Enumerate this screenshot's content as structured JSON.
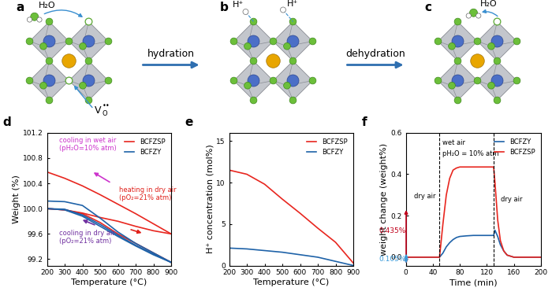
{
  "diagram": {
    "panels": [
      {
        "label": "a",
        "molecule": "H₂O",
        "vacancy": {
          "base": "V",
          "sub": "O",
          "sup": "••"
        }
      },
      {
        "label": "b",
        "protons": [
          "H⁺",
          "H⁺"
        ]
      },
      {
        "label": "c",
        "molecule": "H₂O"
      }
    ],
    "arrows": [
      "hydration",
      "dehydration"
    ]
  },
  "chart_data": [
    {
      "type": "line",
      "panel_label": "d",
      "xlabel": "Temperature (°C)",
      "ylabel": "Weight (%)",
      "x": [
        200,
        300,
        400,
        500,
        600,
        700,
        800,
        900
      ],
      "xlim": [
        200,
        900
      ],
      "xticks": [
        200,
        300,
        400,
        500,
        600,
        700,
        800,
        900
      ],
      "ylim": [
        99.1,
        101.2
      ],
      "yticks": [
        99.2,
        99.6,
        100.0,
        100.4,
        100.8,
        101.2
      ],
      "legend": "upper right",
      "series": [
        {
          "name": "BCFZSP",
          "color": "#e8261f",
          "values": [
            100.0,
            99.98,
            99.93,
            99.86,
            99.8,
            99.72,
            99.65,
            99.6
          ]
        },
        {
          "name": "BCFZSP",
          "color": "#e8261f",
          "values": [
            100.58,
            100.48,
            100.36,
            100.22,
            100.07,
            99.92,
            99.76,
            99.6
          ]
        },
        {
          "name": "BCFZSP",
          "color": "#e8261f",
          "values": [
            100.0,
            99.98,
            99.92,
            99.78,
            99.6,
            99.45,
            99.3,
            99.15
          ]
        },
        {
          "name": "BCFZY",
          "color": "#1e62a8",
          "values": [
            100.0,
            99.99,
            99.9,
            99.75,
            99.58,
            99.42,
            99.28,
            99.15
          ]
        },
        {
          "name": "BCFZY",
          "color": "#1e62a8",
          "values": [
            100.12,
            100.11,
            100.05,
            99.85,
            99.63,
            99.45,
            99.3,
            99.15
          ]
        },
        {
          "name": "BCFZY",
          "color": "#1e62a8",
          "values": [
            100.0,
            99.98,
            99.88,
            99.72,
            99.56,
            99.41,
            99.27,
            99.15
          ]
        }
      ],
      "annotations": [
        {
          "text": "cooling in wet air\n(pH₂O=10% atm)",
          "color": "#cc33cc"
        },
        {
          "text": "heating in dry air\n(pO₂=21% atm)",
          "color": "#e0201a"
        },
        {
          "text": "cooling in dry air\n(pO₂=21% atm)",
          "color": "#7030a0"
        }
      ]
    },
    {
      "type": "line",
      "panel_label": "e",
      "xlabel": "Temperature (°C)",
      "ylabel": "H⁺ concentration (mol%)",
      "x": [
        200,
        300,
        400,
        500,
        600,
        700,
        800,
        900
      ],
      "xlim": [
        200,
        900
      ],
      "xticks": [
        200,
        300,
        400,
        500,
        600,
        700,
        800,
        900
      ],
      "ylim": [
        0,
        16
      ],
      "yticks": [
        0,
        5,
        10,
        15
      ],
      "legend": "upper right",
      "series": [
        {
          "name": "BCFZSP",
          "color": "#e8261f",
          "values": [
            11.5,
            11.0,
            9.8,
            8.0,
            6.3,
            4.5,
            2.8,
            0.3
          ]
        },
        {
          "name": "BCFZY",
          "color": "#1e62a8",
          "values": [
            2.1,
            2.0,
            1.8,
            1.6,
            1.3,
            1.0,
            0.5,
            0.0
          ]
        }
      ]
    },
    {
      "type": "line",
      "panel_label": "f",
      "xlabel": "Time (min)",
      "ylabel": "weight change (weight%)",
      "x": [
        0,
        50,
        55,
        60,
        65,
        70,
        75,
        80,
        90,
        100,
        110,
        120,
        130,
        132,
        136,
        140,
        145,
        150,
        160,
        180,
        200
      ],
      "xlim": [
        0,
        200
      ],
      "xticks": [
        0,
        40,
        80,
        120,
        160,
        200
      ],
      "ylim": [
        -0.04,
        0.6
      ],
      "yticks": [
        0.0,
        0.2,
        0.4,
        0.6
      ],
      "legend": "upper right",
      "series": [
        {
          "name": "BCFZY",
          "color": "#1e62a8",
          "values": [
            0,
            0,
            0.02,
            0.05,
            0.07,
            0.085,
            0.095,
            0.1,
            0.103,
            0.105,
            0.105,
            0.105,
            0.105,
            0.13,
            0.1,
            0.06,
            0.03,
            0.01,
            0,
            0,
            0
          ]
        },
        {
          "name": "BCFZSP",
          "color": "#e8261f",
          "values": [
            0,
            0,
            0.16,
            0.3,
            0.38,
            0.42,
            0.43,
            0.435,
            0.435,
            0.435,
            0.435,
            0.435,
            0.435,
            0.36,
            0.18,
            0.08,
            0.03,
            0.01,
            0,
            0,
            0
          ]
        }
      ],
      "vlines": [
        50,
        130
      ],
      "annotations": [
        {
          "text": "dry air",
          "color": "#000000"
        },
        {
          "text": "wet air",
          "color": "#000000"
        },
        {
          "text": "pH₂O = 10% atm",
          "color": "#000000"
        },
        {
          "text": "dry air",
          "color": "#000000"
        }
      ],
      "differences": [
        {
          "text": "0.435%",
          "value": 0.435,
          "color": "#c0001a"
        },
        {
          "text": "0.105%",
          "value": 0.105,
          "color": "#3a9ad9"
        }
      ]
    }
  ]
}
